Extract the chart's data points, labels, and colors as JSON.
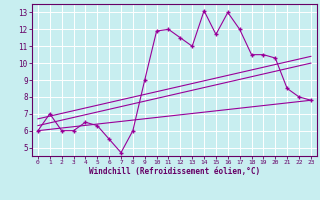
{
  "title": "",
  "xlabel": "Windchill (Refroidissement éolien,°C)",
  "ylabel": "",
  "bg_color": "#c8eef0",
  "grid_color": "#b8dde0",
  "line_color": "#990099",
  "xlim": [
    -0.5,
    23.5
  ],
  "ylim": [
    4.5,
    13.5
  ],
  "xticks": [
    0,
    1,
    2,
    3,
    4,
    5,
    6,
    7,
    8,
    9,
    10,
    11,
    12,
    13,
    14,
    15,
    16,
    17,
    18,
    19,
    20,
    21,
    22,
    23
  ],
  "yticks": [
    5,
    6,
    7,
    8,
    9,
    10,
    11,
    12,
    13
  ],
  "main_line_x": [
    0,
    1,
    2,
    3,
    4,
    5,
    6,
    7,
    8,
    9,
    10,
    11,
    12,
    13,
    14,
    15,
    16,
    17,
    18,
    19,
    20,
    21,
    22,
    23
  ],
  "main_line_y": [
    6.0,
    7.0,
    6.0,
    6.0,
    6.5,
    6.3,
    5.5,
    4.7,
    6.0,
    9.0,
    11.9,
    12.0,
    11.5,
    11.0,
    13.1,
    11.7,
    13.0,
    12.0,
    10.5,
    10.5,
    10.3,
    8.5,
    8.0,
    7.8
  ],
  "line1_x": [
    0,
    23
  ],
  "line1_y": [
    6.0,
    7.8
  ],
  "line2_x": [
    0,
    23
  ],
  "line2_y": [
    6.3,
    10.0
  ],
  "line3_x": [
    0,
    23
  ],
  "line3_y": [
    6.7,
    10.4
  ]
}
